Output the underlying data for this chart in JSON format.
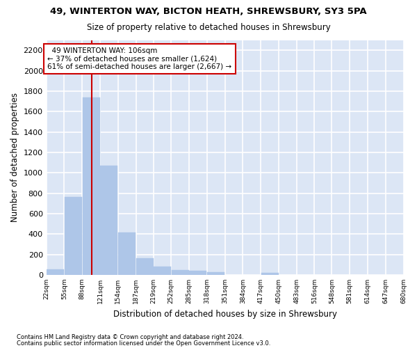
{
  "title1": "49, WINTERTON WAY, BICTON HEATH, SHREWSBURY, SY3 5PA",
  "title2": "Size of property relative to detached houses in Shrewsbury",
  "xlabel": "Distribution of detached houses by size in Shrewsbury",
  "ylabel": "Number of detached properties",
  "footer1": "Contains HM Land Registry data © Crown copyright and database right 2024.",
  "footer2": "Contains public sector information licensed under the Open Government Licence v3.0.",
  "annotation_line1": "  49 WINTERTON WAY: 106sqm",
  "annotation_line2": "← 37% of detached houses are smaller (1,624)",
  "annotation_line3": "61% of semi-detached houses are larger (2,667) →",
  "property_size_sqm": 106,
  "bar_color": "#aec6e8",
  "line_color": "#cc0000",
  "background_color": "#dce6f5",
  "grid_color": "#ffffff",
  "bin_edges": [
    22,
    55,
    88,
    121,
    154,
    187,
    219,
    252,
    285,
    318,
    351,
    384,
    417,
    450,
    483,
    516,
    548,
    581,
    614,
    647,
    680
  ],
  "bin_labels": [
    "22sqm",
    "55sqm",
    "88sqm",
    "121sqm",
    "154sqm",
    "187sqm",
    "219sqm",
    "252sqm",
    "285sqm",
    "318sqm",
    "351sqm",
    "384sqm",
    "417sqm",
    "450sqm",
    "483sqm",
    "516sqm",
    "548sqm",
    "581sqm",
    "614sqm",
    "647sqm",
    "680sqm"
  ],
  "bar_heights": [
    55,
    760,
    1740,
    1070,
    415,
    160,
    80,
    50,
    40,
    30,
    0,
    0,
    20,
    0,
    0,
    0,
    0,
    0,
    0,
    0
  ],
  "ylim": [
    0,
    2300
  ],
  "yticks": [
    0,
    200,
    400,
    600,
    800,
    1000,
    1200,
    1400,
    1600,
    1800,
    2000,
    2200
  ]
}
